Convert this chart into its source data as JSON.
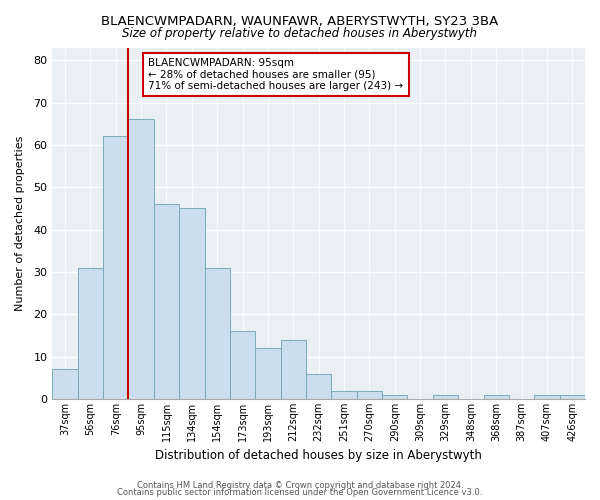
{
  "title": "BLAENCWMPADARN, WAUNFAWR, ABERYSTWYTH, SY23 3BA",
  "subtitle": "Size of property relative to detached houses in Aberystwyth",
  "xlabel": "Distribution of detached houses by size in Aberystwyth",
  "ylabel": "Number of detached properties",
  "bar_labels": [
    "37sqm",
    "56sqm",
    "76sqm",
    "95sqm",
    "115sqm",
    "134sqm",
    "154sqm",
    "173sqm",
    "193sqm",
    "212sqm",
    "232sqm",
    "251sqm",
    "270sqm",
    "290sqm",
    "309sqm",
    "329sqm",
    "348sqm",
    "368sqm",
    "387sqm",
    "407sqm",
    "426sqm"
  ],
  "bar_values": [
    7,
    31,
    62,
    66,
    46,
    45,
    31,
    16,
    12,
    14,
    6,
    2,
    2,
    1,
    0,
    1,
    0,
    1,
    0,
    1,
    1
  ],
  "bar_color": "#ccdded",
  "bar_edge_color": "#7aaabb",
  "vline_bar_index": 3,
  "vline_color": "#cc0000",
  "annotation_title": "BLAENCWMPADARN: 95sqm",
  "annotation_line1": "← 28% of detached houses are smaller (95)",
  "annotation_line2": "71% of semi-detached houses are larger (243) →",
  "annotation_box_color": "#ffffff",
  "annotation_box_edge": "#cc0000",
  "ylim": [
    0,
    83
  ],
  "yticks": [
    0,
    10,
    20,
    30,
    40,
    50,
    60,
    70,
    80
  ],
  "footer1": "Contains HM Land Registry data © Crown copyright and database right 2024.",
  "footer2": "Contains public sector information licensed under the Open Government Licence v3.0.",
  "background_color": "#ffffff",
  "plot_bg_color": "#e8eff5",
  "grid_color": "#ffffff"
}
